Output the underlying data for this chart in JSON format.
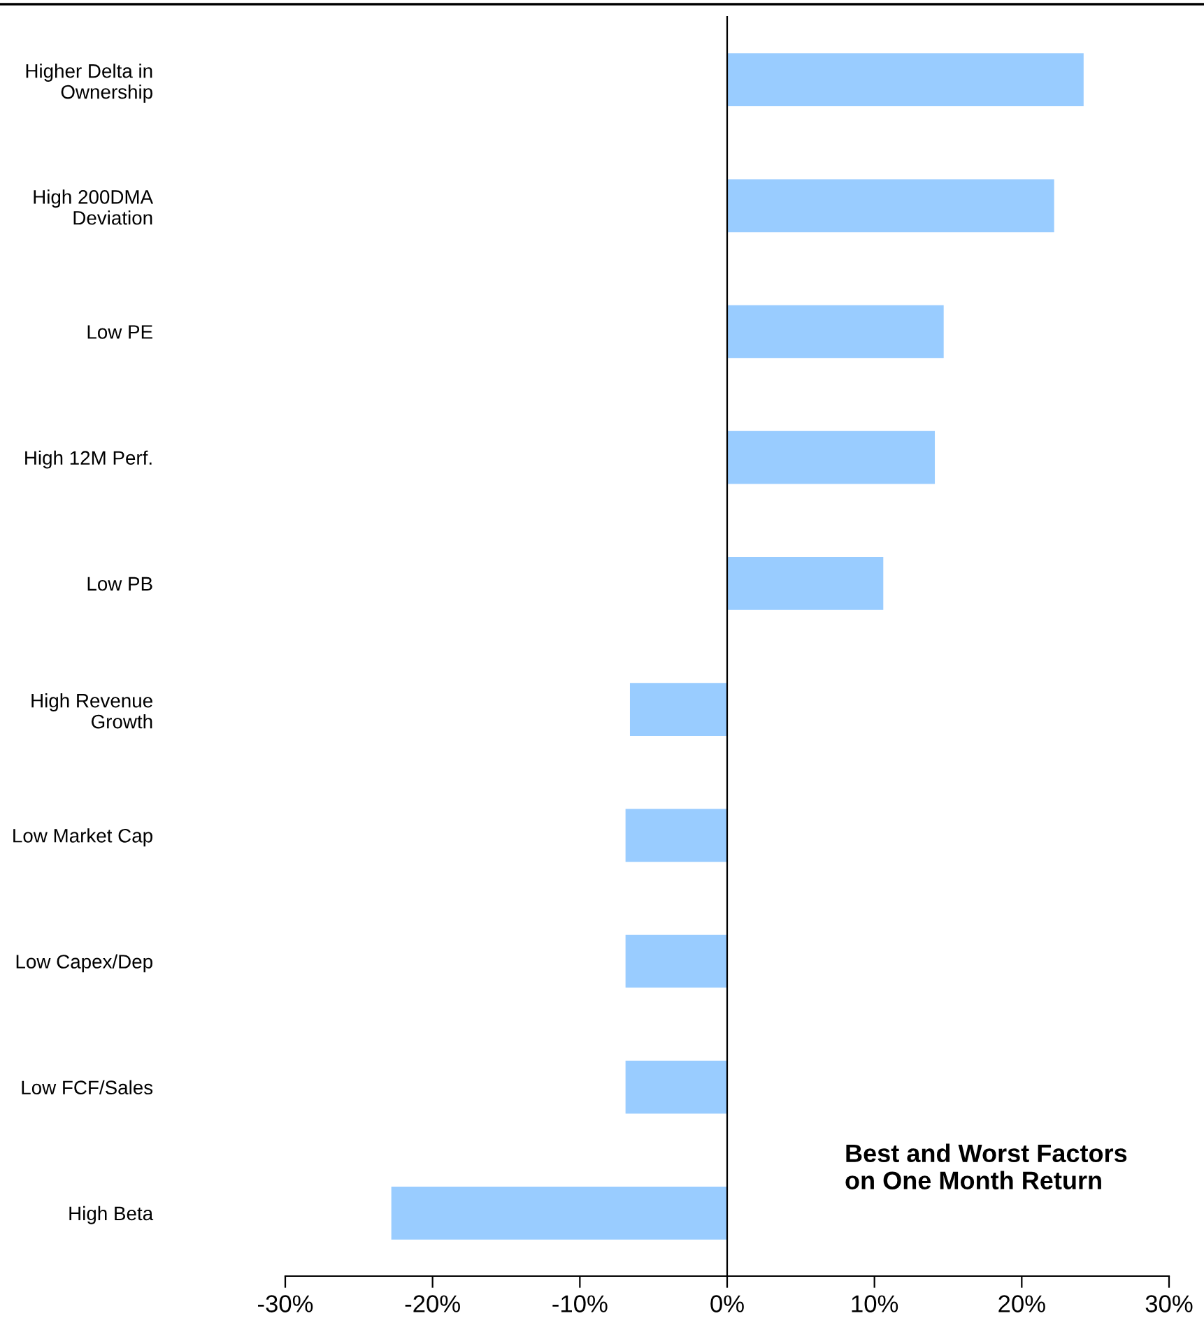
{
  "chart_data": {
    "type": "bar",
    "orientation": "horizontal",
    "title": "Best and Worst Factors\non One Month Return",
    "categories": [
      "Higher Delta in\nOwnership",
      "High 200DMA\nDeviation",
      "Low PE",
      "High 12M Perf.",
      "Low PB",
      "High Revenue\nGrowth",
      "Low Market Cap",
      "Low Capex/Dep",
      "Low FCF/Sales",
      "High Beta"
    ],
    "values": [
      0.242,
      0.222,
      0.147,
      0.141,
      0.106,
      -0.066,
      -0.069,
      -0.069,
      -0.069,
      -0.228
    ],
    "color": "#99ccff",
    "xlim": [
      -0.3,
      0.3
    ],
    "xticks": [
      {
        "value": -0.3,
        "label": "-30%"
      },
      {
        "value": -0.2,
        "label": "-20%"
      },
      {
        "value": -0.1,
        "label": "-10%"
      },
      {
        "value": 0,
        "label": "0%"
      },
      {
        "value": 0.1,
        "label": "10%"
      },
      {
        "value": 0.2,
        "label": "20%"
      },
      {
        "value": 0.3,
        "label": "30%"
      }
    ],
    "legend": false
  }
}
